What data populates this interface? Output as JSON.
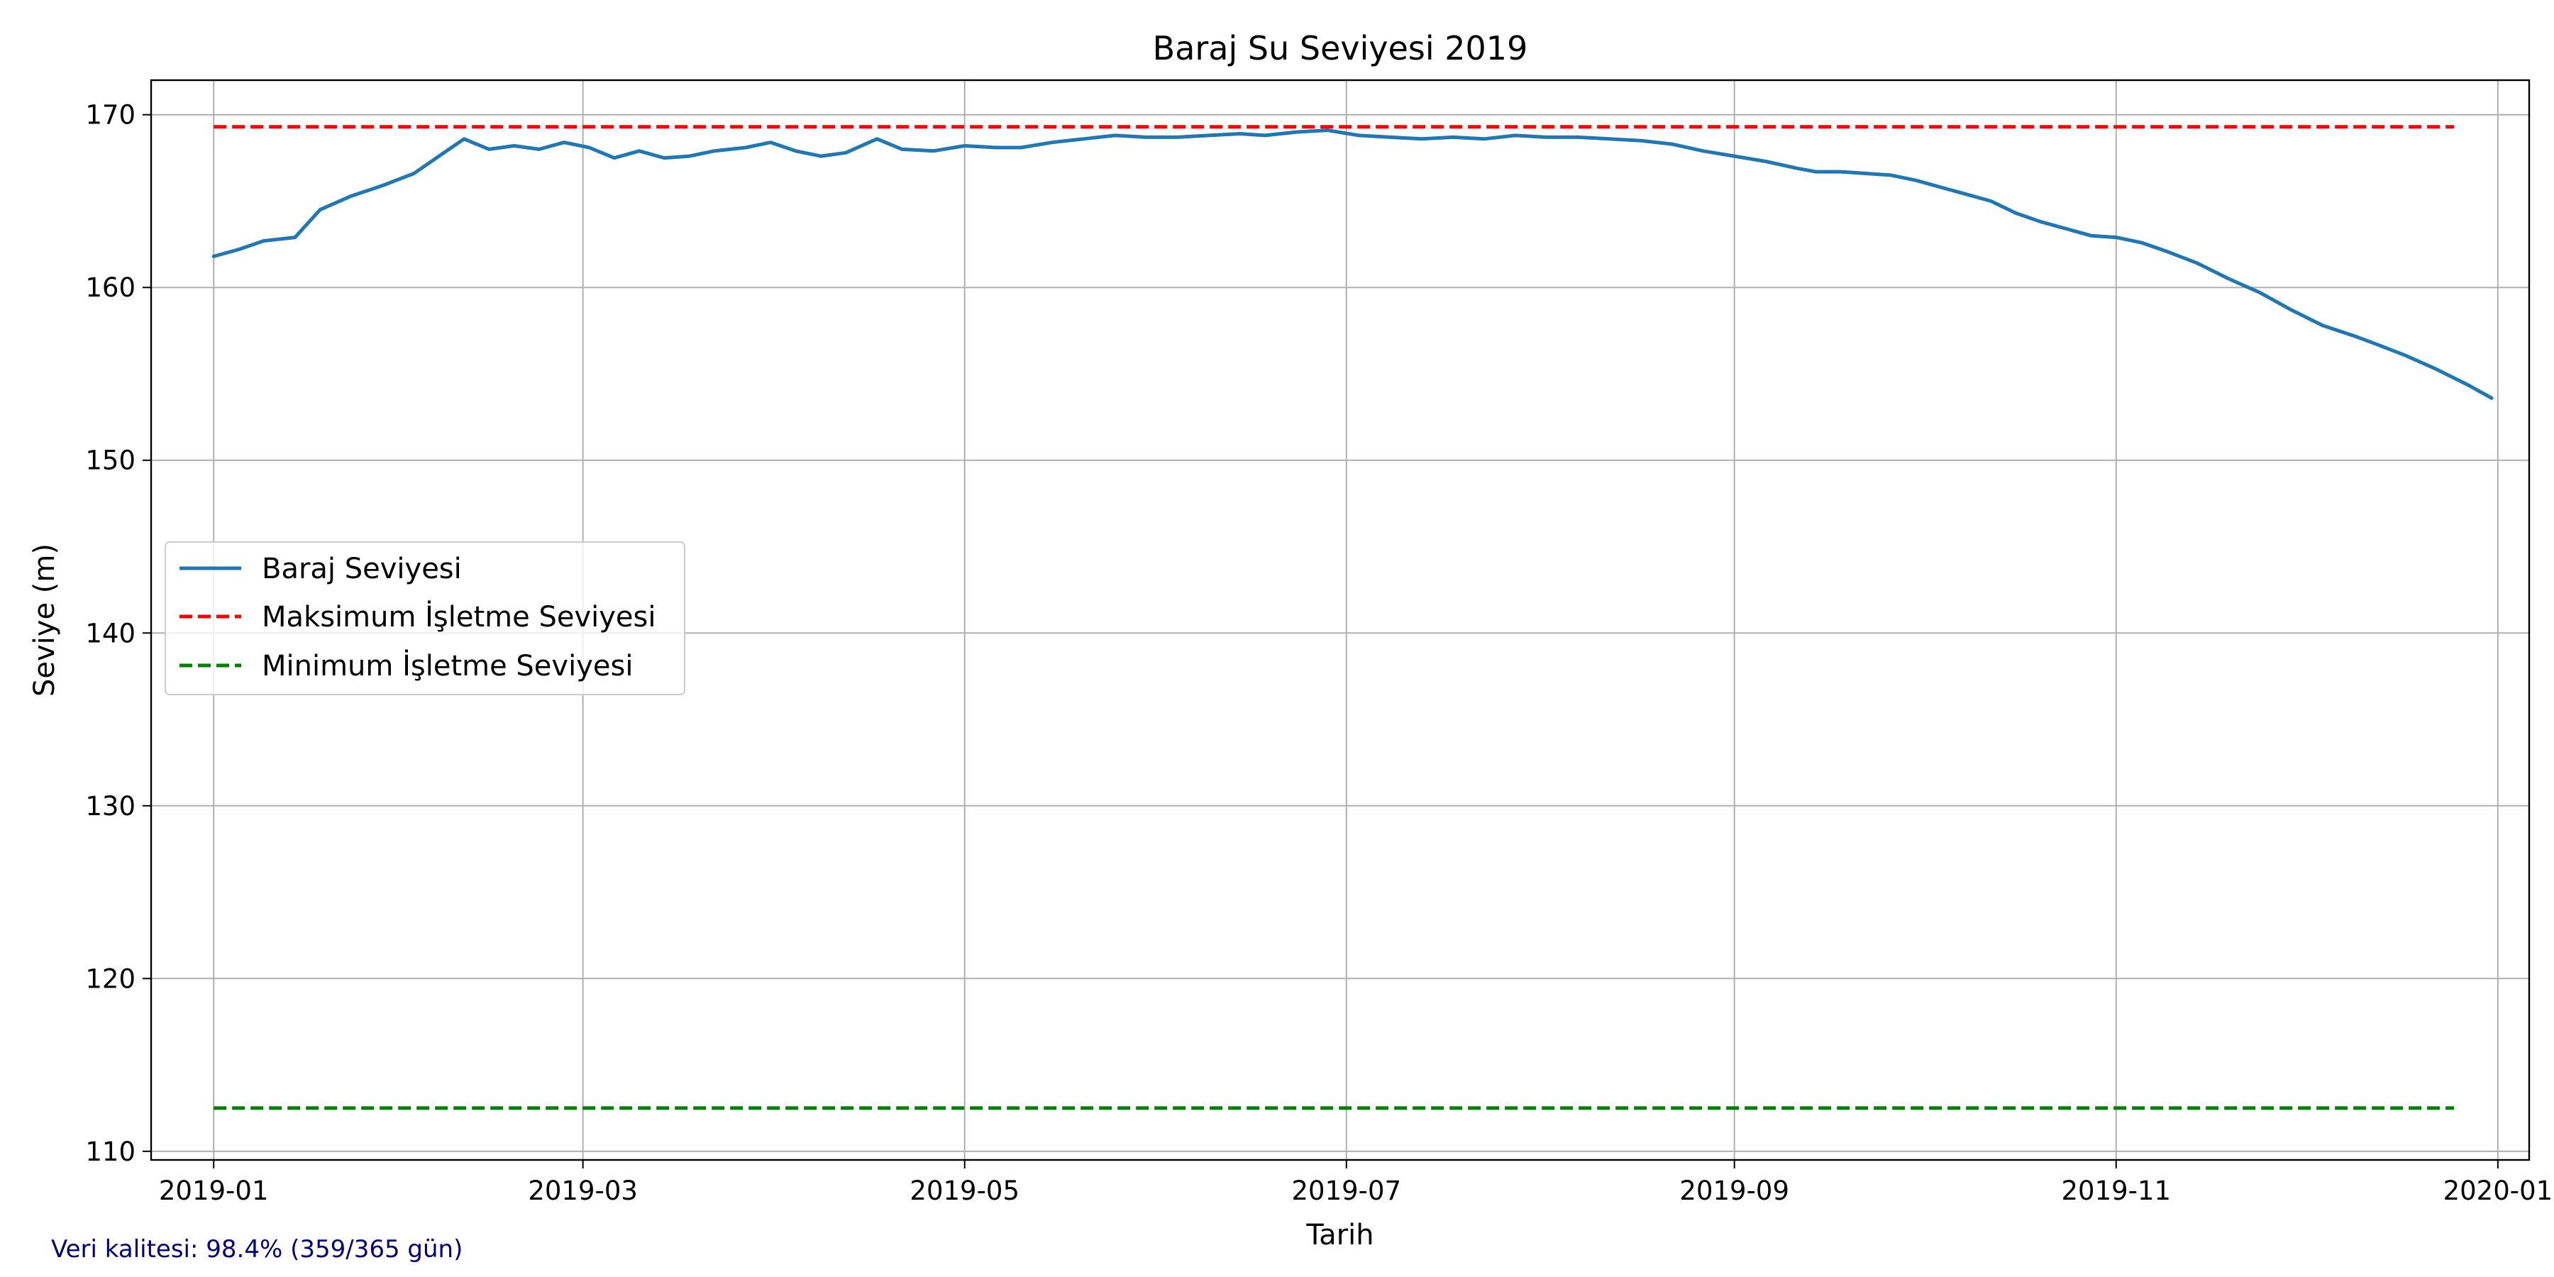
{
  "chart_data": {
    "type": "line",
    "title": "Baraj Su Seviyesi 2019",
    "xlabel": "Tarih",
    "ylabel": "Seviye (m)",
    "xlim": [
      "2018-12-22",
      "2020-01-06"
    ],
    "ylim": [
      109.5,
      172.0
    ],
    "x_ticks": [
      "2019-01",
      "2019-03",
      "2019-05",
      "2019-07",
      "2019-09",
      "2019-11",
      "2020-01"
    ],
    "y_ticks": [
      110,
      120,
      130,
      140,
      150,
      160,
      170
    ],
    "grid": true,
    "legend_position": "center-left",
    "series": [
      {
        "name": "Baraj Seviyesi",
        "style": "solid",
        "color": "#1f77b4",
        "points": [
          [
            "2019-01-01",
            161.8
          ],
          [
            "2019-01-05",
            162.2
          ],
          [
            "2019-01-09",
            162.7
          ],
          [
            "2019-01-14",
            162.9
          ],
          [
            "2019-01-18",
            164.5
          ],
          [
            "2019-01-23",
            165.3
          ],
          [
            "2019-01-28",
            165.9
          ],
          [
            "2019-02-02",
            166.6
          ],
          [
            "2019-02-06",
            167.6
          ],
          [
            "2019-02-10",
            168.6
          ],
          [
            "2019-02-14",
            168.0
          ],
          [
            "2019-02-18",
            168.2
          ],
          [
            "2019-02-22",
            168.0
          ],
          [
            "2019-02-26",
            168.4
          ],
          [
            "2019-03-02",
            168.1
          ],
          [
            "2019-03-06",
            167.5
          ],
          [
            "2019-03-10",
            167.9
          ],
          [
            "2019-03-14",
            167.5
          ],
          [
            "2019-03-18",
            167.6
          ],
          [
            "2019-03-22",
            167.9
          ],
          [
            "2019-03-27",
            168.1
          ],
          [
            "2019-03-31",
            168.4
          ],
          [
            "2019-04-04",
            167.9
          ],
          [
            "2019-04-08",
            167.6
          ],
          [
            "2019-04-12",
            167.8
          ],
          [
            "2019-04-17",
            168.6
          ],
          [
            "2019-04-21",
            168.0
          ],
          [
            "2019-04-26",
            167.9
          ],
          [
            "2019-05-01",
            168.2
          ],
          [
            "2019-05-06",
            168.1
          ],
          [
            "2019-05-10",
            168.1
          ],
          [
            "2019-05-15",
            168.4
          ],
          [
            "2019-05-20",
            168.6
          ],
          [
            "2019-05-25",
            168.8
          ],
          [
            "2019-05-30",
            168.7
          ],
          [
            "2019-06-04",
            168.7
          ],
          [
            "2019-06-09",
            168.8
          ],
          [
            "2019-06-14",
            168.9
          ],
          [
            "2019-06-18",
            168.8
          ],
          [
            "2019-06-23",
            169.0
          ],
          [
            "2019-06-28",
            169.1
          ],
          [
            "2019-07-03",
            168.8
          ],
          [
            "2019-07-08",
            168.7
          ],
          [
            "2019-07-13",
            168.6
          ],
          [
            "2019-07-18",
            168.7
          ],
          [
            "2019-07-23",
            168.6
          ],
          [
            "2019-07-28",
            168.8
          ],
          [
            "2019-08-02",
            168.7
          ],
          [
            "2019-08-07",
            168.7
          ],
          [
            "2019-08-12",
            168.6
          ],
          [
            "2019-08-17",
            168.5
          ],
          [
            "2019-08-22",
            168.3
          ],
          [
            "2019-08-27",
            167.9
          ],
          [
            "2019-09-01",
            167.6
          ],
          [
            "2019-09-06",
            167.3
          ],
          [
            "2019-09-11",
            166.9
          ],
          [
            "2019-09-14",
            166.7
          ],
          [
            "2019-09-18",
            166.7
          ],
          [
            "2019-09-22",
            166.6
          ],
          [
            "2019-09-26",
            166.5
          ],
          [
            "2019-09-30",
            166.2
          ],
          [
            "2019-10-04",
            165.8
          ],
          [
            "2019-10-08",
            165.4
          ],
          [
            "2019-10-12",
            165.0
          ],
          [
            "2019-10-16",
            164.3
          ],
          [
            "2019-10-20",
            163.8
          ],
          [
            "2019-10-24",
            163.4
          ],
          [
            "2019-10-28",
            163.0
          ],
          [
            "2019-11-01",
            162.9
          ],
          [
            "2019-11-05",
            162.6
          ],
          [
            "2019-11-09",
            162.1
          ],
          [
            "2019-11-14",
            161.4
          ],
          [
            "2019-11-19",
            160.5
          ],
          [
            "2019-11-24",
            159.7
          ],
          [
            "2019-11-29",
            158.7
          ],
          [
            "2019-12-04",
            157.8
          ],
          [
            "2019-12-09",
            157.2
          ],
          [
            "2019-12-12",
            156.8
          ],
          [
            "2019-12-17",
            156.1
          ],
          [
            "2019-12-22",
            155.3
          ],
          [
            "2019-12-27",
            154.4
          ],
          [
            "2019-12-31",
            153.6
          ]
        ]
      },
      {
        "name": "Maksimum İşletme Seviyesi",
        "style": "dashed",
        "color": "#ff0000",
        "points": [
          [
            "2019-01-01",
            169.3
          ],
          [
            "2019-12-25",
            169.3
          ]
        ]
      },
      {
        "name": "Minimum İşletme Seviyesi",
        "style": "dashed",
        "color": "#008000",
        "points": [
          [
            "2019-01-01",
            112.5
          ],
          [
            "2019-12-25",
            112.5
          ]
        ]
      }
    ]
  },
  "footnote": {
    "text": "Veri kalitesi: 98.4% (359/365 gün)",
    "color": "#000080"
  }
}
